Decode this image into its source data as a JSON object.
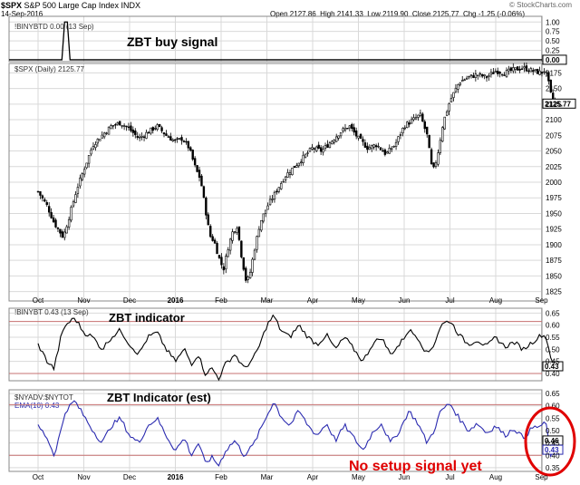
{
  "header": {
    "symbol": "$SPX",
    "name": "S&P 500 Large Cap Index",
    "exchange": "INDX",
    "date": "14-Sep-2016",
    "open": "Open 2127.86",
    "high": "High 2141.33",
    "low": "Low 2119.90",
    "close": "Close 2125.77",
    "change": "Chg -1.25 (-0.06%)",
    "credit": "© StockCharts.com"
  },
  "annotations": {
    "buy_signal": "ZBT buy signal",
    "indicator": "ZBT indicator",
    "indicator_est": "ZBT Indicator (est)",
    "no_setup": "No setup signal yet"
  },
  "colors": {
    "line": "#000000",
    "est_line": "#2b2bb0",
    "annotation_red": "#e00000",
    "ref_line": "#c77070",
    "grid": "#d9d9d9"
  },
  "chart_data": [
    {
      "type": "line",
      "panel": "signal",
      "legend": "!BINYBTD 0.00 (13 Sep)",
      "x_months": [
        "Oct",
        "Nov",
        "Dec",
        "2016",
        "Feb",
        "Mar",
        "Apr",
        "May",
        "Jun",
        "Jul",
        "Aug",
        "Sep"
      ],
      "ylim": [
        0,
        1
      ],
      "yticks": [
        "0.25",
        "0.50",
        "0.75",
        "1.00"
      ],
      "last_label": "0.00",
      "spikes": [
        {
          "month": 0.6,
          "value": 1.0
        }
      ],
      "series": [
        {
          "values": [
            0.0,
            0.0,
            0.0,
            1.0,
            0.0,
            0.0,
            0.0,
            0.0
          ]
        }
      ]
    },
    {
      "type": "candlestick",
      "panel": "price",
      "legend": "$SPX (Daily) 2125.77",
      "ylim": [
        1810,
        2190
      ],
      "yticks": [
        "1825",
        "1850",
        "1875",
        "1900",
        "1925",
        "1950",
        "1975",
        "2000",
        "2025",
        "2050",
        "2075",
        "2100",
        "2125",
        "2150",
        "2175"
      ],
      "last_label": "2125.77",
      "anchors_month_close": [
        [
          0.0,
          1985
        ],
        [
          0.2,
          1962
        ],
        [
          0.35,
          1935
        ],
        [
          0.55,
          1912
        ],
        [
          0.7,
          1950
        ],
        [
          0.85,
          1990
        ],
        [
          1.0,
          2020
        ],
        [
          1.2,
          2060
        ],
        [
          1.4,
          2075
        ],
        [
          1.6,
          2090
        ],
        [
          1.8,
          2095
        ],
        [
          2.0,
          2085
        ],
        [
          2.2,
          2070
        ],
        [
          2.4,
          2080
        ],
        [
          2.6,
          2090
        ],
        [
          2.8,
          2075
        ],
        [
          3.0,
          2065
        ],
        [
          3.15,
          2070
        ],
        [
          3.3,
          2055
        ],
        [
          3.45,
          2020
        ],
        [
          3.55,
          2005
        ],
        [
          3.65,
          1960
        ],
        [
          3.75,
          1915
        ],
        [
          3.85,
          1905
        ],
        [
          3.95,
          1880
        ],
        [
          4.05,
          1860
        ],
        [
          4.15,
          1895
        ],
        [
          4.25,
          1920
        ],
        [
          4.35,
          1930
        ],
        [
          4.45,
          1880
        ],
        [
          4.55,
          1840
        ],
        [
          4.62,
          1850
        ],
        [
          4.72,
          1890
        ],
        [
          4.85,
          1935
        ],
        [
          5.0,
          1960
        ],
        [
          5.2,
          1985
        ],
        [
          5.4,
          2010
        ],
        [
          5.6,
          2025
        ],
        [
          5.8,
          2040
        ],
        [
          6.0,
          2055
        ],
        [
          6.2,
          2050
        ],
        [
          6.4,
          2065
        ],
        [
          6.6,
          2080
        ],
        [
          6.8,
          2090
        ],
        [
          7.0,
          2070
        ],
        [
          7.2,
          2055
        ],
        [
          7.4,
          2060
        ],
        [
          7.6,
          2045
        ],
        [
          7.8,
          2060
        ],
        [
          8.0,
          2090
        ],
        [
          8.2,
          2100
        ],
        [
          8.35,
          2108
        ],
        [
          8.5,
          2075
        ],
        [
          8.62,
          2015
        ],
        [
          8.72,
          2040
        ],
        [
          8.85,
          2095
        ],
        [
          9.0,
          2130
        ],
        [
          9.2,
          2160
        ],
        [
          9.4,
          2168
        ],
        [
          9.6,
          2172
        ],
        [
          9.8,
          2168
        ],
        [
          10.0,
          2178
        ],
        [
          10.2,
          2175
        ],
        [
          10.4,
          2180
        ],
        [
          10.6,
          2183
        ],
        [
          10.8,
          2178
        ],
        [
          11.0,
          2175
        ],
        [
          11.08,
          2180
        ],
        [
          11.15,
          2160
        ],
        [
          11.22,
          2135
        ],
        [
          11.3,
          2126
        ]
      ]
    },
    {
      "type": "line",
      "panel": "zbt",
      "legend": "!BINYBT 0.43 (13 Sep)",
      "ylim": [
        0.37,
        0.67
      ],
      "yticks": [
        "0.40",
        "0.45",
        "0.50",
        "0.55",
        "0.60",
        "0.65"
      ],
      "ref_lines": [
        0.615,
        0.4
      ],
      "last_label": "0.43",
      "anchors_month_value": [
        [
          0.0,
          0.52
        ],
        [
          0.2,
          0.45
        ],
        [
          0.35,
          0.42
        ],
        [
          0.5,
          0.55
        ],
        [
          0.6,
          0.6
        ],
        [
          0.8,
          0.63
        ],
        [
          1.0,
          0.57
        ],
        [
          1.2,
          0.55
        ],
        [
          1.4,
          0.5
        ],
        [
          1.6,
          0.55
        ],
        [
          1.8,
          0.58
        ],
        [
          2.0,
          0.52
        ],
        [
          2.2,
          0.48
        ],
        [
          2.4,
          0.55
        ],
        [
          2.6,
          0.57
        ],
        [
          2.8,
          0.5
        ],
        [
          3.0,
          0.45
        ],
        [
          3.2,
          0.5
        ],
        [
          3.35,
          0.44
        ],
        [
          3.5,
          0.48
        ],
        [
          3.65,
          0.4
        ],
        [
          3.8,
          0.42
        ],
        [
          3.95,
          0.38
        ],
        [
          4.1,
          0.44
        ],
        [
          4.3,
          0.48
        ],
        [
          4.5,
          0.42
        ],
        [
          4.7,
          0.46
        ],
        [
          4.85,
          0.52
        ],
        [
          5.0,
          0.6
        ],
        [
          5.15,
          0.64
        ],
        [
          5.3,
          0.58
        ],
        [
          5.5,
          0.55
        ],
        [
          5.7,
          0.6
        ],
        [
          5.9,
          0.55
        ],
        [
          6.1,
          0.52
        ],
        [
          6.3,
          0.56
        ],
        [
          6.5,
          0.5
        ],
        [
          6.7,
          0.55
        ],
        [
          6.9,
          0.5
        ],
        [
          7.1,
          0.45
        ],
        [
          7.3,
          0.52
        ],
        [
          7.5,
          0.55
        ],
        [
          7.7,
          0.48
        ],
        [
          7.9,
          0.52
        ],
        [
          8.1,
          0.58
        ],
        [
          8.3,
          0.55
        ],
        [
          8.5,
          0.48
        ],
        [
          8.65,
          0.52
        ],
        [
          8.8,
          0.6
        ],
        [
          9.0,
          0.62
        ],
        [
          9.2,
          0.56
        ],
        [
          9.4,
          0.52
        ],
        [
          9.6,
          0.54
        ],
        [
          9.8,
          0.51
        ],
        [
          10.0,
          0.55
        ],
        [
          10.2,
          0.51
        ],
        [
          10.4,
          0.53
        ],
        [
          10.6,
          0.5
        ],
        [
          10.8,
          0.53
        ],
        [
          11.0,
          0.56
        ],
        [
          11.1,
          0.55
        ],
        [
          11.2,
          0.47
        ],
        [
          11.3,
          0.43
        ]
      ]
    },
    {
      "type": "line",
      "panel": "zbt_est",
      "legend_lines": [
        "$NYADV:$NYTOT",
        "EMA(10) 0.43"
      ],
      "ylim": [
        0.335,
        0.665
      ],
      "yticks": [
        "0.35",
        "0.40",
        "0.45",
        "0.50",
        "0.55",
        "0.60",
        "0.65"
      ],
      "ref_lines": [
        0.605,
        0.4
      ],
      "last_labels": [
        "0.46",
        "0.43"
      ],
      "anchors_month_value": [
        [
          0.0,
          0.52
        ],
        [
          0.2,
          0.47
        ],
        [
          0.35,
          0.4
        ],
        [
          0.5,
          0.5
        ],
        [
          0.6,
          0.58
        ],
        [
          0.8,
          0.62
        ],
        [
          1.0,
          0.56
        ],
        [
          1.2,
          0.5
        ],
        [
          1.4,
          0.45
        ],
        [
          1.6,
          0.52
        ],
        [
          1.8,
          0.55
        ],
        [
          2.0,
          0.48
        ],
        [
          2.2,
          0.45
        ],
        [
          2.4,
          0.52
        ],
        [
          2.6,
          0.55
        ],
        [
          2.8,
          0.48
        ],
        [
          3.0,
          0.42
        ],
        [
          3.2,
          0.47
        ],
        [
          3.35,
          0.4
        ],
        [
          3.5,
          0.45
        ],
        [
          3.65,
          0.37
        ],
        [
          3.8,
          0.39
        ],
        [
          3.95,
          0.36
        ],
        [
          4.1,
          0.42
        ],
        [
          4.3,
          0.46
        ],
        [
          4.5,
          0.4
        ],
        [
          4.7,
          0.44
        ],
        [
          4.85,
          0.5
        ],
        [
          5.0,
          0.56
        ],
        [
          5.15,
          0.62
        ],
        [
          5.3,
          0.56
        ],
        [
          5.5,
          0.52
        ],
        [
          5.7,
          0.58
        ],
        [
          5.9,
          0.52
        ],
        [
          6.1,
          0.48
        ],
        [
          6.3,
          0.53
        ],
        [
          6.5,
          0.46
        ],
        [
          6.7,
          0.52
        ],
        [
          6.9,
          0.47
        ],
        [
          7.1,
          0.42
        ],
        [
          7.3,
          0.49
        ],
        [
          7.5,
          0.53
        ],
        [
          7.7,
          0.45
        ],
        [
          7.9,
          0.5
        ],
        [
          8.1,
          0.58
        ],
        [
          8.3,
          0.53
        ],
        [
          8.5,
          0.45
        ],
        [
          8.65,
          0.5
        ],
        [
          8.8,
          0.58
        ],
        [
          9.0,
          0.61
        ],
        [
          9.2,
          0.55
        ],
        [
          9.4,
          0.5
        ],
        [
          9.6,
          0.53
        ],
        [
          9.8,
          0.49
        ],
        [
          10.0,
          0.52
        ],
        [
          10.2,
          0.48
        ],
        [
          10.4,
          0.51
        ],
        [
          10.6,
          0.47
        ],
        [
          10.8,
          0.51
        ],
        [
          11.0,
          0.52
        ],
        [
          11.1,
          0.53
        ],
        [
          11.2,
          0.4
        ],
        [
          11.3,
          0.46
        ]
      ]
    }
  ]
}
